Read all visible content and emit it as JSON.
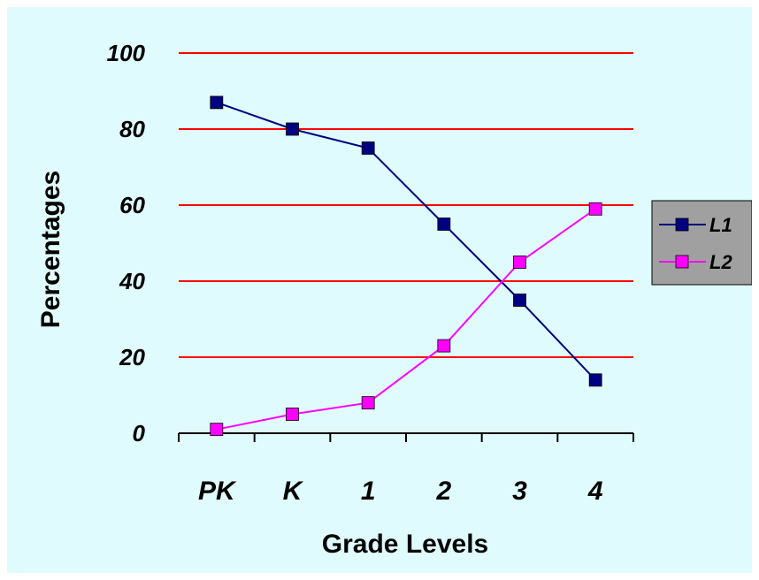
{
  "chart_data": {
    "type": "line",
    "categories": [
      "PK",
      "K",
      "1",
      "2",
      "3",
      "4"
    ],
    "series": [
      {
        "name": "L1",
        "color": "#000080",
        "marker": "square",
        "values": [
          87,
          80,
          75,
          55,
          35,
          14
        ]
      },
      {
        "name": "L2",
        "color": "#ff00ff",
        "marker": "square",
        "values": [
          1,
          5,
          8,
          23,
          45,
          59
        ]
      }
    ],
    "title": "",
    "xlabel": "Grade Levels",
    "ylabel": "Percentages",
    "ylim": [
      0,
      100
    ],
    "yticks": [
      "0",
      "20",
      "40",
      "60",
      "80",
      "100"
    ],
    "grid": {
      "horizontal": true,
      "color": "#ff0000"
    },
    "legend": {
      "position": "right",
      "background": "#a0a0a0"
    },
    "background": "#e0fbfd"
  }
}
